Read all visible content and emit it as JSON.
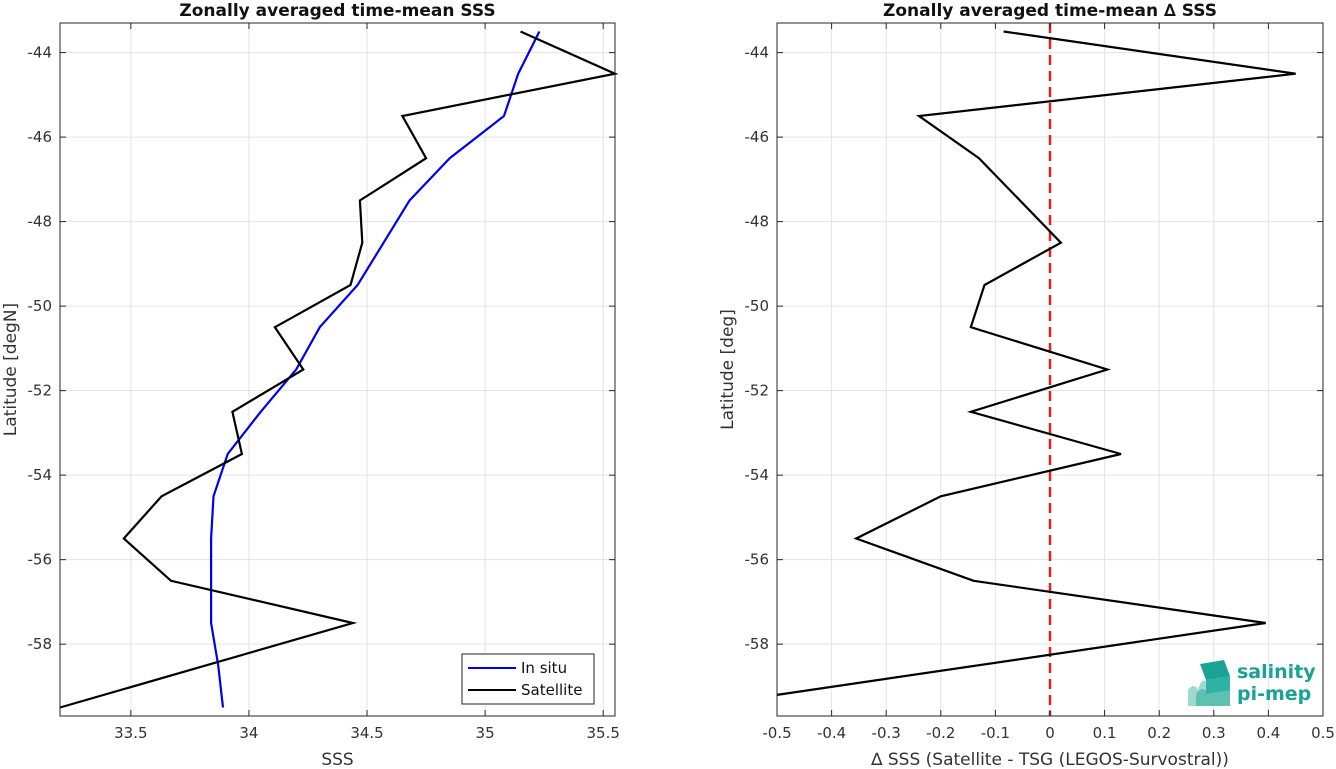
{
  "chart_data": [
    {
      "type": "line",
      "title": "Zonally averaged time-mean SSS",
      "xlabel": "SSS",
      "ylabel": "Latitude [degN]",
      "xlim": [
        33.2,
        35.55
      ],
      "ylim": [
        -59.7,
        -43.3
      ],
      "xticks": [
        33.5,
        34,
        34.5,
        35,
        35.5
      ],
      "xtick_labels": [
        "33.5",
        "34",
        "34.5",
        "35",
        "35.5"
      ],
      "yticks": [
        -44,
        -46,
        -48,
        -50,
        -52,
        -54,
        -56,
        -58
      ],
      "ytick_labels": [
        "-44",
        "-46",
        "-48",
        "-50",
        "-52",
        "-54",
        "-56",
        "-58"
      ],
      "grid": true,
      "legend_position": "bottom-right",
      "series": [
        {
          "name": "In situ",
          "color": "#0000ee",
          "x": [
            35.23,
            35.14,
            35.08,
            34.85,
            34.68,
            34.57,
            34.46,
            34.3,
            34.2,
            34.05,
            33.91,
            33.85,
            33.84,
            33.84,
            33.84,
            33.87,
            33.89
          ],
          "y": [
            -43.5,
            -44.5,
            -45.5,
            -46.5,
            -47.5,
            -48.5,
            -49.5,
            -50.5,
            -51.5,
            -52.5,
            -53.5,
            -54.5,
            -55.5,
            -56.5,
            -57.5,
            -58.5,
            -59.5
          ]
        },
        {
          "name": "Satellite",
          "color": "#000000",
          "x": [
            35.15,
            35.55,
            34.65,
            34.75,
            34.47,
            34.48,
            34.43,
            34.11,
            34.23,
            33.93,
            33.97,
            33.63,
            33.47,
            33.67,
            34.44,
            33.2
          ],
          "y": [
            -43.5,
            -44.5,
            -45.5,
            -46.5,
            -47.5,
            -48.5,
            -49.5,
            -50.5,
            -51.5,
            -52.5,
            -53.5,
            -54.5,
            -55.5,
            -56.5,
            -57.5,
            -59.5
          ]
        }
      ]
    },
    {
      "type": "line",
      "title": "Zonally averaged time-mean ∆ SSS",
      "xlabel": "∆ SSS (Satellite - TSG (LEGOS-Survostral))",
      "ylabel": "Latitude [deg]",
      "xlim": [
        -0.5,
        0.5
      ],
      "ylim": [
        -59.7,
        -43.3
      ],
      "xticks": [
        -0.5,
        -0.4,
        -0.3,
        -0.2,
        -0.1,
        0,
        0.1,
        0.2,
        0.3,
        0.4,
        0.5
      ],
      "xtick_labels": [
        "-0.5",
        "-0.4",
        "-0.3",
        "-0.2",
        "-0.1",
        "0",
        "0.1",
        "0.2",
        "0.3",
        "0.4",
        "0.5"
      ],
      "yticks": [
        -44,
        -46,
        -48,
        -50,
        -52,
        -54,
        -56,
        -58
      ],
      "ytick_labels": [
        "-44",
        "-46",
        "-48",
        "-50",
        "-52",
        "-54",
        "-56",
        "-58"
      ],
      "grid": true,
      "zero_line": {
        "x": 0,
        "color": "#e8211f",
        "style": "dashed"
      },
      "series": [
        {
          "color": "#000000",
          "x": [
            -0.085,
            0.45,
            -0.24,
            -0.13,
            0.02,
            -0.12,
            -0.145,
            0.105,
            -0.145,
            0.13,
            -0.2,
            -0.355,
            -0.14,
            0.395,
            -0.5
          ],
          "y": [
            -43.5,
            -44.5,
            -45.5,
            -46.5,
            -48.5,
            -49.5,
            -50.5,
            -51.5,
            -52.5,
            -53.5,
            -54.5,
            -55.5,
            -56.5,
            -57.5,
            -59.2
          ]
        }
      ]
    }
  ],
  "logo": {
    "line1": "salinity",
    "line2": "pi-mep",
    "color": "#1aa394"
  }
}
